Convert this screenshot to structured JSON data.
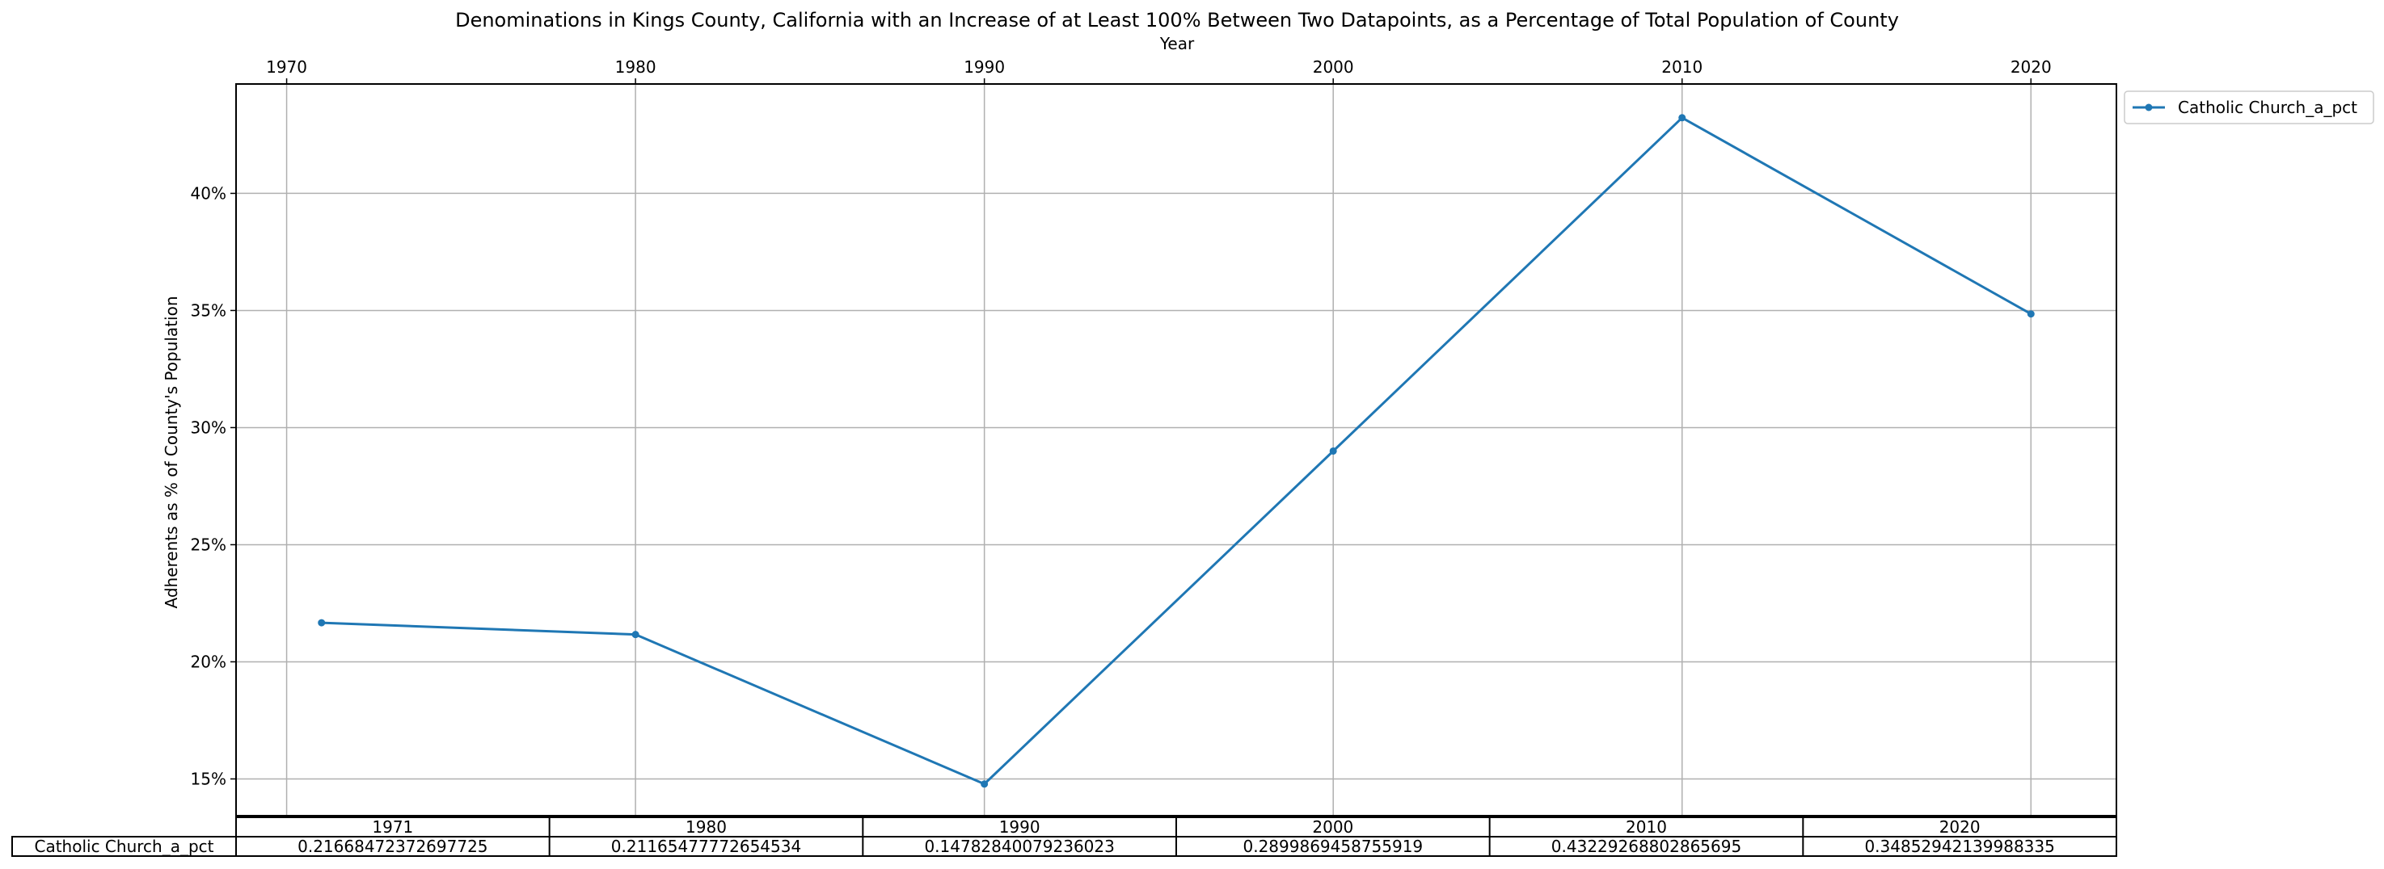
{
  "chart_data": {
    "type": "line",
    "title": "Denominations in Kings County, California with an Increase of at Least 100% Between Two Datapoints, as a Percentage of Total Population of County",
    "xlabel": "Year",
    "ylabel": "Adherents as % of County's Population",
    "x": [
      1971,
      1980,
      1990,
      2000,
      2010,
      2020
    ],
    "xlim": [
      1968.55,
      2022.45
    ],
    "x_ticks": [
      1970,
      1980,
      1990,
      2000,
      2010,
      2020
    ],
    "x_tick_labels": [
      "1970",
      "1980",
      "1990",
      "2000",
      "2010",
      "2020"
    ],
    "xaxis_position": "top",
    "ylim": [
      0.1343,
      0.4467
    ],
    "y_ticks": [
      0.15,
      0.2,
      0.25,
      0.3,
      0.35,
      0.4
    ],
    "y_tick_labels": [
      "15%",
      "20%",
      "25%",
      "30%",
      "35%",
      "40%"
    ],
    "grid": true,
    "legend_position": "outside-top-right",
    "series": [
      {
        "name": "Catholic Church_a_pct",
        "color": "#1f77b4",
        "values": [
          0.21668472372697725,
          0.21165477772654534,
          0.14782840079236023,
          0.2899869458755919,
          0.43229268802865695,
          0.34852942139988335
        ]
      }
    ],
    "table": {
      "col_labels": [
        "1971",
        "1980",
        "1990",
        "2000",
        "2010",
        "2020"
      ],
      "row_labels": [
        "Catholic Church_a_pct"
      ],
      "cells": [
        [
          "0.21668472372697725",
          "0.21165477772654534",
          "0.14782840079236023",
          "0.2899869458755919",
          "0.43229268802865695",
          "0.34852942139988335"
        ]
      ]
    }
  }
}
